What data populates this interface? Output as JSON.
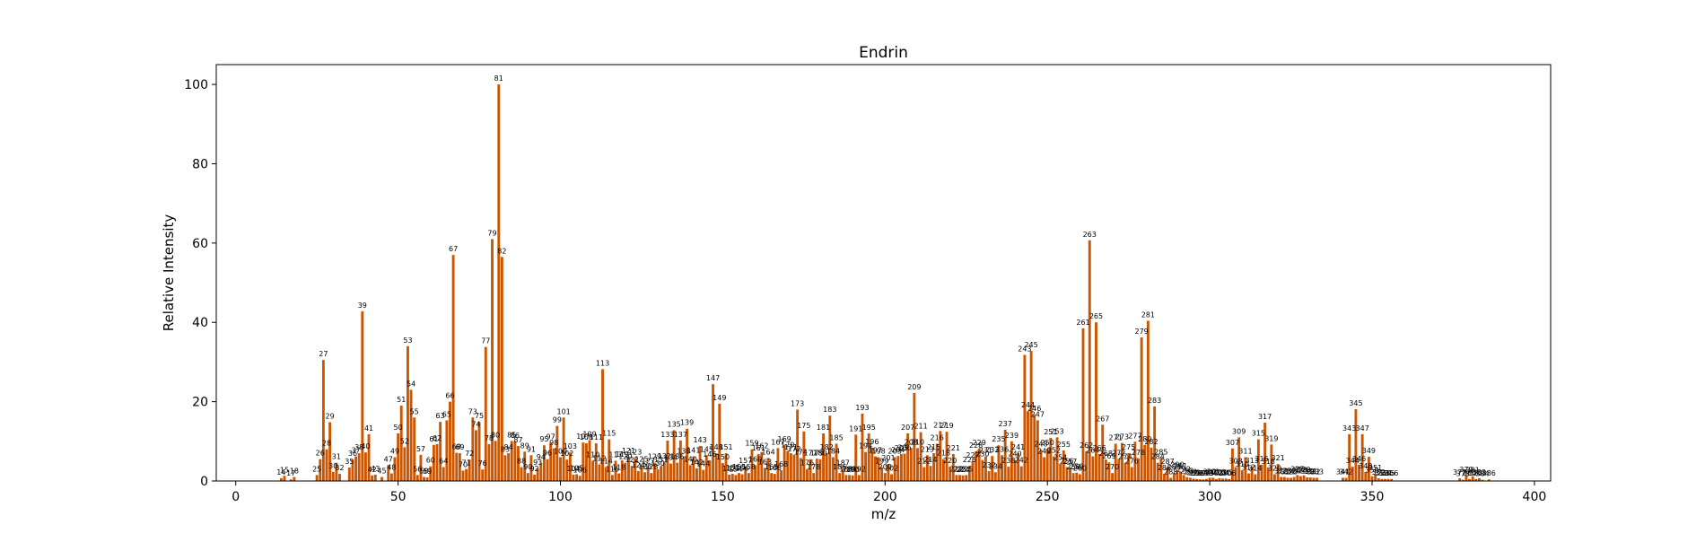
{
  "chart_data": {
    "type": "bar",
    "title": "Endrin",
    "xlabel": "m/z",
    "ylabel": "Relative Intensity",
    "xlim": [
      -6,
      405
    ],
    "ylim": [
      0,
      105
    ],
    "xticks": [
      0,
      50,
      100,
      150,
      200,
      250,
      300,
      350,
      400
    ],
    "yticks": [
      0,
      20,
      40,
      60,
      80,
      100
    ],
    "grid": false,
    "bar_color": "#cc5500",
    "peaks": [
      [
        14,
        0.7
      ],
      [
        15,
        1.3
      ],
      [
        17,
        0.4
      ],
      [
        18,
        1.0
      ],
      [
        25,
        1.5
      ],
      [
        26,
        5.5
      ],
      [
        27,
        30.5
      ],
      [
        28,
        8.0
      ],
      [
        29,
        14.8
      ],
      [
        30,
        2.3
      ],
      [
        31,
        4.6
      ],
      [
        32,
        1.8
      ],
      [
        35,
        3.4
      ],
      [
        36,
        5.4
      ],
      [
        37,
        6.2
      ],
      [
        38,
        7.0
      ],
      [
        39,
        42.8
      ],
      [
        40,
        7.2
      ],
      [
        41,
        11.8
      ],
      [
        42,
        1.4
      ],
      [
        43,
        1.6
      ],
      [
        45,
        1.0
      ],
      [
        47,
        4.0
      ],
      [
        48,
        1.9
      ],
      [
        49,
        6.0
      ],
      [
        50,
        12.0
      ],
      [
        51,
        19.0
      ],
      [
        52,
        8.5
      ],
      [
        53,
        34.0
      ],
      [
        54,
        23.0
      ],
      [
        55,
        16.0
      ],
      [
        56,
        1.5
      ],
      [
        57,
        6.6
      ],
      [
        58,
        1.0
      ],
      [
        59,
        0.9
      ],
      [
        60,
        3.7
      ],
      [
        61,
        9.1
      ],
      [
        62,
        9.3
      ],
      [
        63,
        14.9
      ],
      [
        64,
        3.5
      ],
      [
        65,
        15.3
      ],
      [
        66,
        20.0
      ],
      [
        67,
        57.0
      ],
      [
        68,
        7.1
      ],
      [
        69,
        7.0
      ],
      [
        70,
        2.6
      ],
      [
        71,
        3.0
      ],
      [
        72,
        5.4
      ],
      [
        73,
        16.0
      ],
      [
        74,
        12.8
      ],
      [
        75,
        14.9
      ],
      [
        76,
        2.9
      ],
      [
        77,
        33.8
      ],
      [
        78,
        9.3
      ],
      [
        79,
        61.0
      ],
      [
        80,
        10.1
      ],
      [
        81,
        100.0
      ],
      [
        82,
        56.5
      ],
      [
        83,
        6.5
      ],
      [
        84,
        7.0
      ],
      [
        85,
        10.1
      ],
      [
        86,
        10.0
      ],
      [
        87,
        8.8
      ],
      [
        88,
        3.5
      ],
      [
        89,
        7.4
      ],
      [
        90,
        2.0
      ],
      [
        91,
        6.5
      ],
      [
        92,
        1.6
      ],
      [
        93,
        3.2
      ],
      [
        94,
        4.5
      ],
      [
        95,
        9.0
      ],
      [
        96,
        5.5
      ],
      [
        97,
        9.6
      ],
      [
        98,
        8.2
      ],
      [
        99,
        13.9
      ],
      [
        100,
        6.0
      ],
      [
        101,
        16.0
      ],
      [
        102,
        5.4
      ],
      [
        103,
        7.2
      ],
      [
        104,
        1.6
      ],
      [
        105,
        1.7
      ],
      [
        106,
        1.3
      ],
      [
        107,
        9.7
      ],
      [
        108,
        9.5
      ],
      [
        109,
        10.3
      ],
      [
        110,
        5.1
      ],
      [
        111,
        9.5
      ],
      [
        112,
        4.2
      ],
      [
        113,
        28.2
      ],
      [
        114,
        3.5
      ],
      [
        115,
        10.5
      ],
      [
        116,
        1.5
      ],
      [
        117,
        5.1
      ],
      [
        118,
        1.9
      ],
      [
        119,
        5.2
      ],
      [
        120,
        4.6
      ],
      [
        121,
        6.1
      ],
      [
        122,
        3.8
      ],
      [
        123,
        5.8
      ],
      [
        124,
        2.5
      ],
      [
        125,
        4.0
      ],
      [
        126,
        2.2
      ],
      [
        127,
        3.5
      ],
      [
        128,
        2.0
      ],
      [
        129,
        4.6
      ],
      [
        130,
        2.9
      ],
      [
        131,
        3.8
      ],
      [
        132,
        4.7
      ],
      [
        133,
        10.2
      ],
      [
        134,
        4.4
      ],
      [
        135,
        12.8
      ],
      [
        136,
        4.6
      ],
      [
        137,
        10.2
      ],
      [
        138,
        6.0
      ],
      [
        139,
        13.2
      ],
      [
        140,
        4.0
      ],
      [
        141,
        6.2
      ],
      [
        142,
        3.2
      ],
      [
        143,
        8.8
      ],
      [
        144,
        2.8
      ],
      [
        145,
        6.5
      ],
      [
        146,
        5.2
      ],
      [
        147,
        24.4
      ],
      [
        148,
        7.0
      ],
      [
        149,
        19.5
      ],
      [
        150,
        4.5
      ],
      [
        151,
        7.0
      ],
      [
        152,
        1.6
      ],
      [
        153,
        1.8
      ],
      [
        154,
        1.5
      ],
      [
        155,
        2.0
      ],
      [
        156,
        1.7
      ],
      [
        157,
        3.6
      ],
      [
        158,
        2.0
      ],
      [
        159,
        8.0
      ],
      [
        160,
        4.0
      ],
      [
        161,
        6.8
      ],
      [
        162,
        7.3
      ],
      [
        163,
        3.3
      ],
      [
        164,
        5.8
      ],
      [
        165,
        2.0
      ],
      [
        166,
        1.8
      ],
      [
        167,
        8.3
      ],
      [
        168,
        2.7
      ],
      [
        169,
        9.1
      ],
      [
        170,
        7.6
      ],
      [
        171,
        7.0
      ],
      [
        172,
        6.6
      ],
      [
        173,
        18.0
      ],
      [
        174,
        5.8
      ],
      [
        175,
        12.5
      ],
      [
        176,
        3.0
      ],
      [
        177,
        5.5
      ],
      [
        178,
        2.0
      ],
      [
        179,
        5.6
      ],
      [
        180,
        5.5
      ],
      [
        181,
        12.0
      ],
      [
        182,
        7.0
      ],
      [
        183,
        16.5
      ],
      [
        184,
        6.0
      ],
      [
        185,
        9.4
      ],
      [
        186,
        2.0
      ],
      [
        187,
        3.0
      ],
      [
        188,
        1.5
      ],
      [
        189,
        1.5
      ],
      [
        190,
        1.4
      ],
      [
        191,
        11.7
      ],
      [
        192,
        1.5
      ],
      [
        193,
        17.0
      ],
      [
        194,
        7.3
      ],
      [
        195,
        12.0
      ],
      [
        196,
        8.4
      ],
      [
        197,
        6.2
      ],
      [
        198,
        6.0
      ],
      [
        199,
        3.5
      ],
      [
        200,
        2.0
      ],
      [
        201,
        4.3
      ],
      [
        202,
        1.7
      ],
      [
        203,
        6.0
      ],
      [
        204,
        6.3
      ],
      [
        205,
        6.8
      ],
      [
        206,
        6.9
      ],
      [
        207,
        12.0
      ],
      [
        208,
        8.3
      ],
      [
        209,
        22.2
      ],
      [
        210,
        8.3
      ],
      [
        211,
        12.3
      ],
      [
        212,
        3.5
      ],
      [
        213,
        6.5
      ],
      [
        214,
        3.8
      ],
      [
        215,
        7.0
      ],
      [
        216,
        9.4
      ],
      [
        217,
        12.6
      ],
      [
        218,
        5.5
      ],
      [
        219,
        12.4
      ],
      [
        220,
        3.6
      ],
      [
        221,
        6.8
      ],
      [
        222,
        1.5
      ],
      [
        223,
        1.5
      ],
      [
        224,
        1.4
      ],
      [
        225,
        1.5
      ],
      [
        226,
        3.8
      ],
      [
        227,
        5.0
      ],
      [
        228,
        7.5
      ],
      [
        229,
        8.2
      ],
      [
        230,
        5.3
      ],
      [
        231,
        6.2
      ],
      [
        232,
        2.5
      ],
      [
        233,
        6.3
      ],
      [
        234,
        2.2
      ],
      [
        235,
        9.0
      ],
      [
        236,
        6.5
      ],
      [
        237,
        12.9
      ],
      [
        238,
        3.6
      ],
      [
        239,
        10.0
      ],
      [
        240,
        5.3
      ],
      [
        241,
        7.0
      ],
      [
        242,
        3.7
      ],
      [
        243,
        31.8
      ],
      [
        244,
        17.6
      ],
      [
        245,
        32.8
      ],
      [
        246,
        16.7
      ],
      [
        247,
        15.3
      ],
      [
        248,
        7.8
      ],
      [
        249,
        6.0
      ],
      [
        250,
        8.1
      ],
      [
        251,
        10.9
      ],
      [
        252,
        6.2
      ],
      [
        253,
        11.0
      ],
      [
        254,
        4.4
      ],
      [
        255,
        7.7
      ],
      [
        256,
        3.5
      ],
      [
        257,
        3.4
      ],
      [
        258,
        2.0
      ],
      [
        259,
        2.1
      ],
      [
        260,
        1.7
      ],
      [
        261,
        38.5
      ],
      [
        262,
        7.5
      ],
      [
        263,
        60.7
      ],
      [
        264,
        6.2
      ],
      [
        265,
        40.0
      ],
      [
        266,
        6.8
      ],
      [
        267,
        14.2
      ],
      [
        268,
        5.4
      ],
      [
        269,
        4.7
      ],
      [
        270,
        2.0
      ],
      [
        271,
        9.4
      ],
      [
        272,
        5.6
      ],
      [
        273,
        9.6
      ],
      [
        274,
        4.6
      ],
      [
        275,
        7.0
      ],
      [
        276,
        3.5
      ],
      [
        277,
        9.9
      ],
      [
        278,
        5.7
      ],
      [
        279,
        36.2
      ],
      [
        280,
        9.1
      ],
      [
        281,
        40.4
      ],
      [
        282,
        8.4
      ],
      [
        283,
        18.8
      ],
      [
        284,
        4.6
      ],
      [
        285,
        5.8
      ],
      [
        286,
        1.8
      ],
      [
        287,
        3.4
      ],
      [
        288,
        0.8
      ],
      [
        289,
        2.0
      ],
      [
        290,
        2.6
      ],
      [
        291,
        2.3
      ],
      [
        292,
        1.5
      ],
      [
        293,
        1.0
      ],
      [
        294,
        0.8
      ],
      [
        295,
        0.6
      ],
      [
        296,
        0.5
      ],
      [
        297,
        0.4
      ],
      [
        298,
        0.4
      ],
      [
        299,
        0.5
      ],
      [
        300,
        0.8
      ],
      [
        301,
        0.8
      ],
      [
        302,
        0.5
      ],
      [
        303,
        0.7
      ],
      [
        304,
        0.6
      ],
      [
        305,
        0.6
      ],
      [
        306,
        0.5
      ],
      [
        307,
        8.2
      ],
      [
        308,
        3.5
      ],
      [
        309,
        11.0
      ],
      [
        310,
        2.7
      ],
      [
        311,
        6.0
      ],
      [
        312,
        1.9
      ],
      [
        313,
        3.6
      ],
      [
        314,
        1.7
      ],
      [
        315,
        10.5
      ],
      [
        316,
        4.1
      ],
      [
        317,
        14.7
      ],
      [
        318,
        3.4
      ],
      [
        319,
        9.2
      ],
      [
        320,
        1.7
      ],
      [
        321,
        4.3
      ],
      [
        322,
        1.0
      ],
      [
        323,
        1.0
      ],
      [
        324,
        0.8
      ],
      [
        325,
        0.8
      ],
      [
        326,
        1.0
      ],
      [
        327,
        1.5
      ],
      [
        328,
        1.2
      ],
      [
        329,
        1.4
      ],
      [
        330,
        0.9
      ],
      [
        331,
        0.9
      ],
      [
        332,
        0.8
      ],
      [
        333,
        0.8
      ],
      [
        341,
        0.8
      ],
      [
        342,
        0.8
      ],
      [
        343,
        11.8
      ],
      [
        344,
        3.6
      ],
      [
        345,
        18.1
      ],
      [
        346,
        4.1
      ],
      [
        347,
        11.8
      ],
      [
        348,
        2.3
      ],
      [
        349,
        6.1
      ],
      [
        350,
        1.2
      ],
      [
        351,
        1.8
      ],
      [
        352,
        0.7
      ],
      [
        353,
        0.5
      ],
      [
        354,
        0.5
      ],
      [
        355,
        0.5
      ],
      [
        356,
        0.5
      ],
      [
        377,
        0.7
      ],
      [
        378,
        0.3
      ],
      [
        379,
        1.4
      ],
      [
        380,
        0.5
      ],
      [
        381,
        1.2
      ],
      [
        382,
        0.5
      ],
      [
        383,
        0.7
      ],
      [
        384,
        0.3
      ],
      [
        386,
        0.4
      ]
    ]
  }
}
